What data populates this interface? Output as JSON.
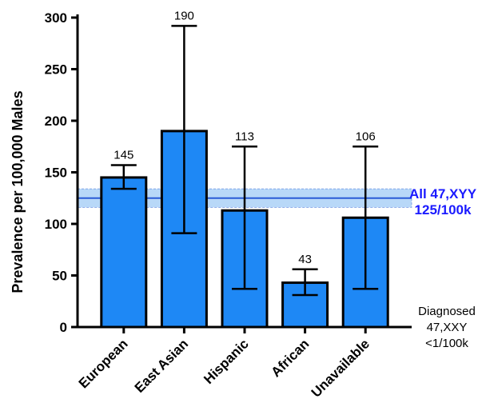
{
  "chart_data": {
    "type": "bar",
    "ylabel": "Prevalence per 100,000 Males",
    "ylim": [
      0,
      300
    ],
    "yticks": [
      0,
      50,
      100,
      150,
      200,
      250,
      300
    ],
    "categories": [
      "European",
      "East Asian",
      "Hispanic",
      "African",
      "Unavailable"
    ],
    "values": [
      145,
      190,
      113,
      43,
      106
    ],
    "data_labels": [
      "145",
      "190",
      "113",
      "43",
      "106"
    ],
    "error_low": [
      134,
      91,
      37,
      31,
      37
    ],
    "error_high": [
      157,
      292,
      175,
      56,
      175
    ],
    "bar_color": "#1e88f5",
    "reference": {
      "value": 125,
      "band_low": 116,
      "band_high": 134,
      "line_color": "#2a5cd6",
      "band_color": "#b8d8f8",
      "label_line1": "All 47,XYY",
      "label_line2": "125/100k",
      "label_color": "#1a1aff"
    },
    "annotation": {
      "line1": "Diagnosed",
      "line2": "47,XXY",
      "line3": "<1/100k"
    }
  }
}
